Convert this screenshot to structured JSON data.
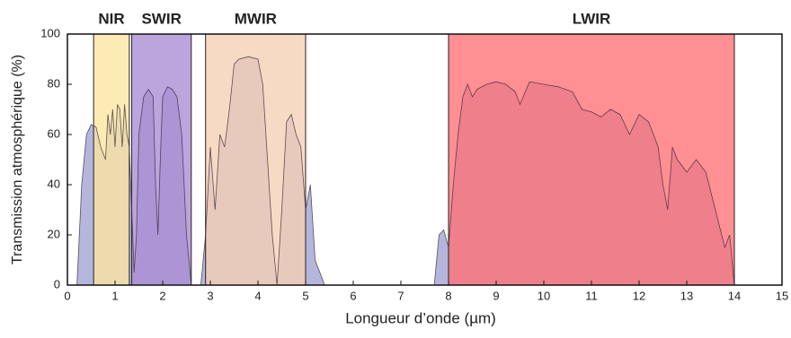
{
  "chart_data": {
    "type": "area",
    "xlabel": "Longueur d’onde (µm)",
    "ylabel": "Transmission atmosphérique (%)",
    "xlim": [
      0,
      15
    ],
    "xticks": [
      0,
      1,
      2,
      3,
      4,
      5,
      6,
      7,
      8,
      9,
      10,
      11,
      12,
      13,
      14,
      15
    ],
    "ylim": [
      0,
      100
    ],
    "yticks": [
      0,
      20,
      40,
      60,
      80,
      100
    ],
    "bands": [
      {
        "name": "NIR",
        "start": 0.55,
        "end": 1.3,
        "color": "#fde6a0"
      },
      {
        "name": "SWIR",
        "start": 1.35,
        "end": 2.6,
        "color": "#a98bd3"
      },
      {
        "name": "MWIR",
        "start": 2.9,
        "end": 5.0,
        "color": "#f5cfb3"
      },
      {
        "name": "LWIR",
        "start": 8.0,
        "end": 14.0,
        "color": "#ff6f74"
      }
    ],
    "x": [
      0.2,
      0.3,
      0.4,
      0.5,
      0.6,
      0.7,
      0.8,
      0.85,
      0.9,
      0.95,
      1.0,
      1.05,
      1.1,
      1.15,
      1.2,
      1.25,
      1.3,
      1.35,
      1.4,
      1.45,
      1.5,
      1.6,
      1.7,
      1.8,
      1.85,
      1.9,
      1.95,
      2.0,
      2.1,
      2.2,
      2.3,
      2.4,
      2.5,
      2.6,
      2.8,
      2.9,
      3.0,
      3.1,
      3.2,
      3.3,
      3.4,
      3.5,
      3.6,
      3.8,
      4.0,
      4.1,
      4.2,
      4.3,
      4.4,
      4.5,
      4.6,
      4.7,
      4.8,
      4.9,
      5.0,
      5.1,
      5.2,
      5.4,
      7.7,
      7.8,
      7.9,
      8.0,
      8.1,
      8.2,
      8.3,
      8.4,
      8.5,
      8.6,
      8.8,
      9.0,
      9.2,
      9.4,
      9.5,
      9.7,
      10.0,
      10.3,
      10.6,
      10.8,
      11.0,
      11.2,
      11.4,
      11.6,
      11.8,
      12.0,
      12.2,
      12.4,
      12.5,
      12.6,
      12.7,
      12.8,
      13.0,
      13.2,
      13.4,
      13.6,
      13.8,
      13.9,
      14.0
    ],
    "series": [
      {
        "color": "#b4b6dc",
        "values": [
          0,
          40,
          60,
          64,
          63,
          55,
          50,
          68,
          60,
          70,
          55,
          72,
          70,
          55,
          72,
          60,
          55,
          30,
          5,
          20,
          60,
          75,
          78,
          75,
          40,
          20,
          50,
          75,
          79,
          78,
          75,
          60,
          20,
          0,
          0,
          20,
          55,
          30,
          60,
          55,
          70,
          88,
          90,
          91,
          90,
          80,
          50,
          20,
          0,
          30,
          65,
          68,
          60,
          55,
          30,
          40,
          10,
          0,
          0,
          20,
          22,
          15,
          40,
          60,
          75,
          80,
          75,
          78,
          80,
          81,
          80,
          77,
          72,
          81,
          80,
          79,
          77,
          70,
          69,
          67,
          70,
          68,
          60,
          68,
          65,
          55,
          40,
          30,
          55,
          50,
          45,
          50,
          45,
          30,
          15,
          20,
          0
        ]
      }
    ]
  }
}
